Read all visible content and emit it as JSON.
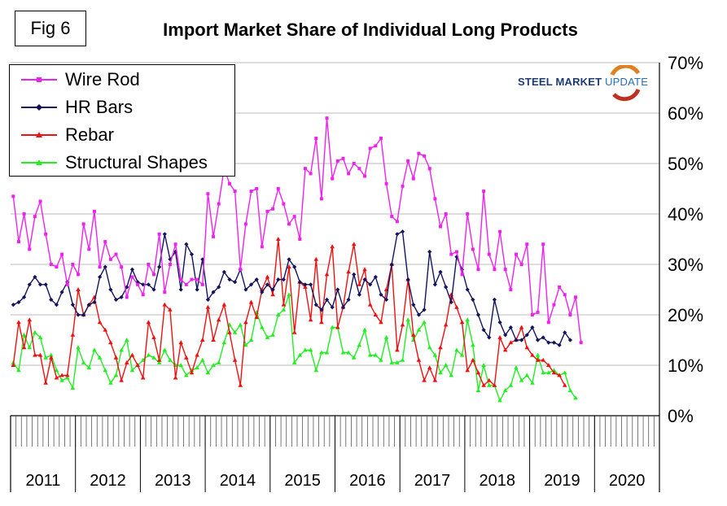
{
  "fig_label": "Fig 6",
  "logo": {
    "bold": "STEEL MARKET",
    "light": "UPDATE"
  },
  "colors": {
    "wire_rod": "#ee22ee",
    "hr_bars": "#14145e",
    "rebar": "#ee1111",
    "structural": "#22ee22",
    "grid": "#bbbbbb"
  },
  "chart_data": {
    "type": "line",
    "title": "Import Market Share of Individual Long Products",
    "y_axis": {
      "min": 0,
      "max": 70,
      "side": "right",
      "ticks": [
        "0%",
        "10%",
        "20%",
        "30%",
        "40%",
        "50%",
        "60%",
        "70%"
      ]
    },
    "x_axis": {
      "categories": [
        "2011",
        "2012",
        "2013",
        "2014",
        "2015",
        "2016",
        "2017",
        "2018",
        "2019",
        "2020"
      ],
      "start": "2011-01",
      "points_per_year": 12
    },
    "grid": true,
    "legend_position": "top-left",
    "series": [
      {
        "name": "Wire Rod",
        "values": [
          43.5,
          34.5,
          40,
          33,
          39.5,
          42.5,
          36,
          30,
          29.5,
          32,
          26,
          30,
          28,
          38,
          33,
          40.5,
          29.5,
          34.5,
          31,
          32,
          29.5,
          23.5,
          27.5,
          26,
          24,
          30,
          28,
          36,
          24.5,
          30,
          34,
          27,
          26,
          27,
          27,
          26,
          44,
          35.5,
          42,
          49,
          46,
          44.5,
          29,
          38,
          44.5,
          45,
          33.5,
          40.5,
          41,
          45,
          42,
          38,
          39.5,
          35,
          49,
          48,
          55,
          43,
          59,
          47,
          50.5,
          51,
          48,
          50,
          49,
          47.5,
          53,
          53.5,
          55,
          46,
          39.5,
          38.5,
          45.5,
          50.5,
          47,
          52,
          51.5,
          49,
          43,
          37.5,
          40,
          32,
          32.5,
          28,
          40,
          33,
          29,
          44.5,
          32,
          29,
          36.5,
          29,
          25,
          32,
          30,
          34,
          20,
          20.5,
          34,
          18.5,
          22,
          25.5,
          24,
          20,
          23.5,
          14.5
        ]
      },
      {
        "name": "HR Bars",
        "values": [
          22,
          22.5,
          23.5,
          26,
          27.5,
          26,
          26,
          23,
          22,
          24.5,
          26.5,
          22,
          20,
          20,
          22,
          22.5,
          27.5,
          29.5,
          25,
          23,
          23.5,
          25.5,
          29,
          26.5,
          26,
          26,
          25,
          29.5,
          36,
          31,
          32.5,
          25,
          34,
          32,
          25,
          31,
          23,
          24.5,
          25.5,
          28.5,
          27,
          26.5,
          29,
          25,
          26,
          27,
          24.5,
          26,
          25,
          27,
          27,
          31,
          29.5,
          26.5,
          26,
          26,
          22,
          21,
          23,
          21.5,
          25,
          21.5,
          23,
          28,
          24,
          27,
          26,
          27.5,
          24,
          23,
          30,
          36,
          36.5,
          27,
          22,
          20,
          21,
          32.5,
          26,
          28.5,
          25.5,
          22.5,
          31.5,
          29,
          25,
          23,
          20,
          17,
          15.5,
          23,
          18.5,
          16,
          17.5,
          15,
          15,
          16,
          17.5,
          15,
          15.5,
          14.5,
          14.5,
          14,
          16.5,
          15
        ]
      },
      {
        "name": "Rebar",
        "values": [
          10,
          18.5,
          13.5,
          19,
          12,
          12,
          6.5,
          11.5,
          7.5,
          8,
          8,
          16,
          25,
          20,
          22,
          23.5,
          18.5,
          17,
          14.5,
          11.5,
          7,
          10.5,
          12,
          10,
          7.5,
          18.5,
          15.5,
          11,
          22,
          21,
          7.5,
          14.5,
          11.5,
          8.5,
          12,
          15,
          21.5,
          15,
          19,
          22,
          16.5,
          11,
          6,
          18.5,
          22.5,
          19.5,
          25,
          27.5,
          24,
          35,
          22,
          29.5,
          16.5,
          26.5,
          25.5,
          19,
          31,
          18.5,
          28,
          33.5,
          17.5,
          21.5,
          28.5,
          34,
          26,
          29,
          22,
          20,
          18.5,
          25,
          30,
          13,
          18,
          27,
          16,
          11,
          7,
          9.5,
          7,
          13.5,
          18,
          24,
          21.5,
          18.5,
          9,
          11,
          8.5,
          6,
          7,
          6,
          15.5,
          13,
          14.5,
          15,
          17.5,
          13.5,
          12,
          11,
          11,
          10,
          8.5,
          8,
          6
        ]
      },
      {
        "name": "Structural Shapes",
        "values": [
          10.5,
          9,
          16,
          13.5,
          16.5,
          15.5,
          11.5,
          12,
          9,
          7,
          7.5,
          5.5,
          13.5,
          10.5,
          9.5,
          13,
          11.5,
          9,
          6.5,
          8,
          13,
          15,
          9,
          10,
          11,
          12,
          11.5,
          10.5,
          13,
          11,
          10,
          10,
          8,
          9,
          9.5,
          11,
          8.5,
          10,
          10.5,
          14.5,
          18,
          16.5,
          18,
          14,
          15,
          20.5,
          17.5,
          15.5,
          16,
          20,
          21,
          24,
          10.5,
          12,
          13,
          13,
          9,
          12.5,
          12.5,
          17.5,
          17.5,
          12.5,
          12.5,
          11.5,
          14,
          17,
          12,
          12,
          11,
          15.5,
          10.5,
          10.5,
          11,
          19,
          15,
          17,
          18.5,
          13.5,
          12,
          8.5,
          10,
          8,
          13,
          12,
          19,
          14,
          5,
          10,
          6,
          6,
          3,
          5,
          6,
          9.5,
          7,
          8,
          6.5,
          12,
          8.5,
          8.5,
          9,
          8,
          8.5,
          5,
          3.5
        ]
      }
    ]
  }
}
